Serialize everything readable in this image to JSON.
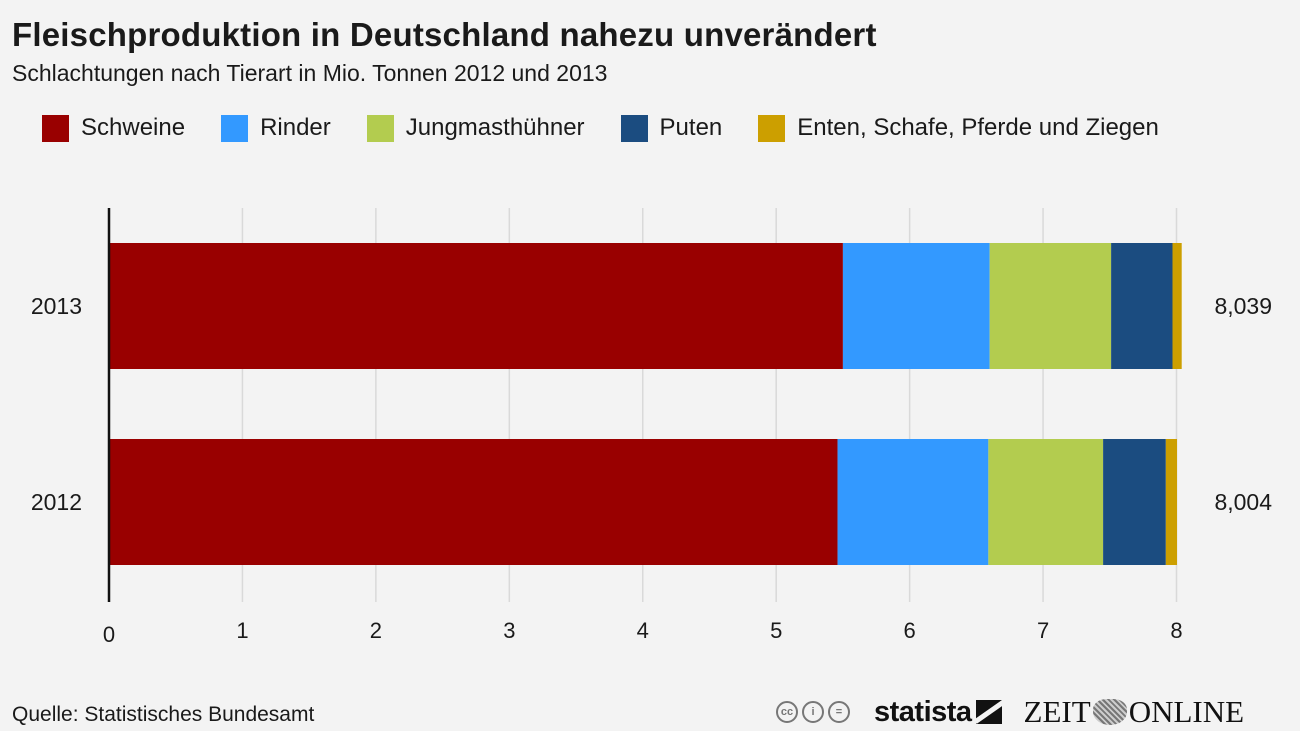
{
  "header": {
    "title": "Fleischproduktion in Deutschland nahezu unverändert",
    "subtitle": "Schlachtungen nach Tierart in Mio. Tonnen 2012 und 2013"
  },
  "legend": [
    {
      "label": "Schweine",
      "color": "#990000"
    },
    {
      "label": "Rinder",
      "color": "#3399ff"
    },
    {
      "label": "Jungmasthühner",
      "color": "#b3cc4f"
    },
    {
      "label": "Puten",
      "color": "#1b4c80"
    },
    {
      "label": "Enten, Schafe, Pferde und Ziegen",
      "color": "#cc9f00"
    }
  ],
  "chart_data": {
    "type": "bar",
    "orientation": "horizontal",
    "stacked": true,
    "title": "Fleischproduktion in Deutschland nahezu unverändert",
    "subtitle": "Schlachtungen nach Tierart in Mio. Tonnen 2012 und 2013",
    "xlabel": "",
    "ylabel": "",
    "categories": [
      "2013",
      "2012"
    ],
    "series": [
      {
        "name": "Schweine",
        "color": "#990000",
        "values": [
          5.5,
          5.46
        ]
      },
      {
        "name": "Rinder",
        "color": "#3399ff",
        "values": [
          1.1,
          1.13
        ]
      },
      {
        "name": "Jungmasthühner",
        "color": "#b3cc4f",
        "values": [
          0.91,
          0.86
        ]
      },
      {
        "name": "Puten",
        "color": "#1b4c80",
        "values": [
          0.46,
          0.47
        ]
      },
      {
        "name": "Enten, Schafe, Pferde und Ziegen",
        "color": "#cc9f00",
        "values": [
          0.069,
          0.084
        ]
      }
    ],
    "totals": [
      "8,039",
      "8,004"
    ],
    "xlim": [
      0,
      8
    ],
    "xticks": [
      "0",
      "1",
      "2",
      "3",
      "4",
      "5",
      "6",
      "7",
      "8"
    ],
    "grid": true,
    "legend_position": "top"
  },
  "footer": {
    "source": "Quelle: Statistisches Bundesamt",
    "cc_icons": [
      "cc-icon",
      "by-icon",
      "nd-icon"
    ],
    "cc_labels": [
      "cc",
      "i",
      "="
    ],
    "statista_label": "statista",
    "zeit_left": "ZEIT",
    "zeit_right": "ONLINE"
  }
}
